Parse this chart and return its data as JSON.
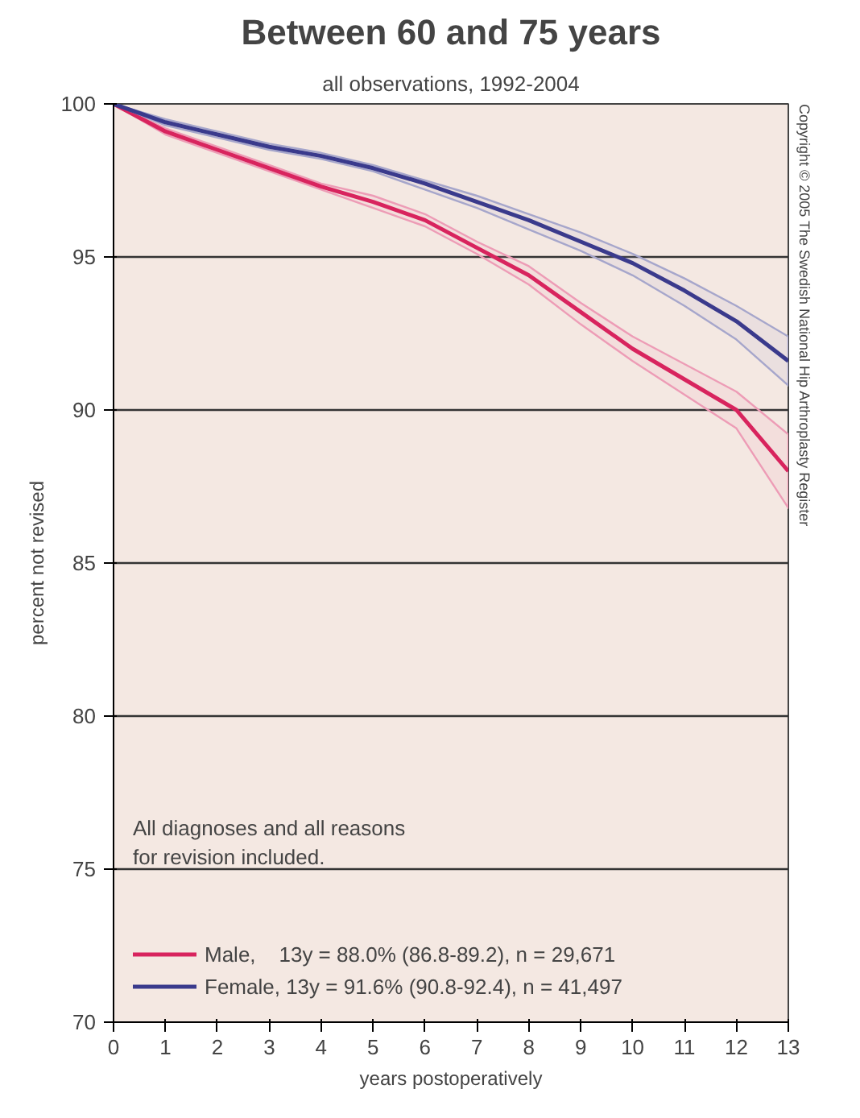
{
  "chart_data": {
    "type": "line",
    "title": "Between 60 and 75 years",
    "subtitle": "all observations, 1992-2004",
    "xlabel": "years postoperatively",
    "ylabel": "percent not revised",
    "x": [
      0,
      1,
      2,
      3,
      4,
      5,
      6,
      7,
      8,
      9,
      10,
      11,
      12,
      13
    ],
    "series": [
      {
        "name": "Male,    13y = 88.0% (86.8-89.2), n = 29,671",
        "color": "#d8245e",
        "values": [
          100,
          99.1,
          98.5,
          97.9,
          97.3,
          96.8,
          96.2,
          95.3,
          94.4,
          93.2,
          92.0,
          91.0,
          90.0,
          88.0
        ],
        "lower": [
          100,
          99.0,
          98.4,
          97.8,
          97.2,
          96.6,
          96.0,
          95.1,
          94.1,
          92.8,
          91.6,
          90.5,
          89.4,
          86.8
        ],
        "upper": [
          100,
          99.2,
          98.6,
          98.0,
          97.4,
          97.0,
          96.4,
          95.5,
          94.7,
          93.5,
          92.4,
          91.5,
          90.6,
          89.2
        ]
      },
      {
        "name": "Female, 13y = 91.6% (90.8-92.4), n = 41,497",
        "color": "#3a3a8c",
        "values": [
          100,
          99.4,
          99.0,
          98.6,
          98.3,
          97.9,
          97.4,
          96.8,
          96.2,
          95.5,
          94.8,
          93.9,
          92.9,
          91.6
        ],
        "lower": [
          100,
          99.3,
          98.9,
          98.5,
          98.2,
          97.8,
          97.2,
          96.6,
          95.9,
          95.2,
          94.4,
          93.4,
          92.3,
          90.8
        ],
        "upper": [
          100,
          99.5,
          99.1,
          98.7,
          98.4,
          98.0,
          97.5,
          97.0,
          96.4,
          95.8,
          95.1,
          94.3,
          93.4,
          92.4
        ]
      }
    ],
    "xlim": [
      0,
      13
    ],
    "ylim": [
      70,
      100
    ],
    "xticks": [
      0,
      1,
      2,
      3,
      4,
      5,
      6,
      7,
      8,
      9,
      10,
      11,
      12,
      13
    ],
    "yticks": [
      70,
      75,
      80,
      85,
      90,
      95,
      100
    ],
    "grid": "y",
    "legend": "bottom left",
    "marker": "none",
    "line_style": "solid",
    "annotations": [
      "All diagnoses and all reasons\nfor revision included.",
      "Copyright © 2005 The Swedish National Hip Arthroplasty Register"
    ]
  }
}
